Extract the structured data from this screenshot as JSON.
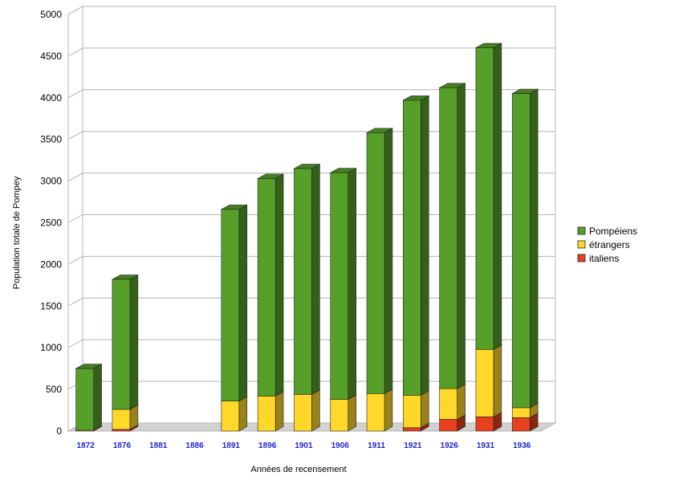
{
  "chart_data": {
    "type": "bar",
    "stacked": true,
    "style": "3d",
    "categories": [
      "1872",
      "1876",
      "1881",
      "1886",
      "1891",
      "1896",
      "1901",
      "1906",
      "1911",
      "1921",
      "1926",
      "1931",
      "1936"
    ],
    "series": [
      {
        "name": "italiens",
        "color": "#e8401c",
        "values": [
          0,
          20,
          0,
          0,
          0,
          0,
          0,
          0,
          0,
          40,
          140,
          170,
          160
        ]
      },
      {
        "name": "étrangers",
        "color": "#ffd82a",
        "values": [
          10,
          240,
          0,
          0,
          360,
          420,
          440,
          380,
          450,
          390,
          370,
          810,
          120
        ]
      },
      {
        "name": "Pompéiens",
        "color": "#56a02a",
        "values": [
          740,
          1560,
          0,
          0,
          2300,
          2610,
          2710,
          2720,
          3130,
          3540,
          3610,
          3620,
          3770
        ]
      }
    ],
    "legend_order": [
      "Pompéiens",
      "étrangers",
      "italiens"
    ],
    "legend_position": "right",
    "ylim": [
      0,
      5000
    ],
    "yticks": [
      "0",
      "500",
      "1000",
      "1500",
      "2000",
      "2500",
      "3000",
      "3500",
      "4000",
      "4500",
      "5000"
    ],
    "ylabel": "Population totale de Pompey",
    "xlabel": "Années de recensement",
    "grid": true
  }
}
